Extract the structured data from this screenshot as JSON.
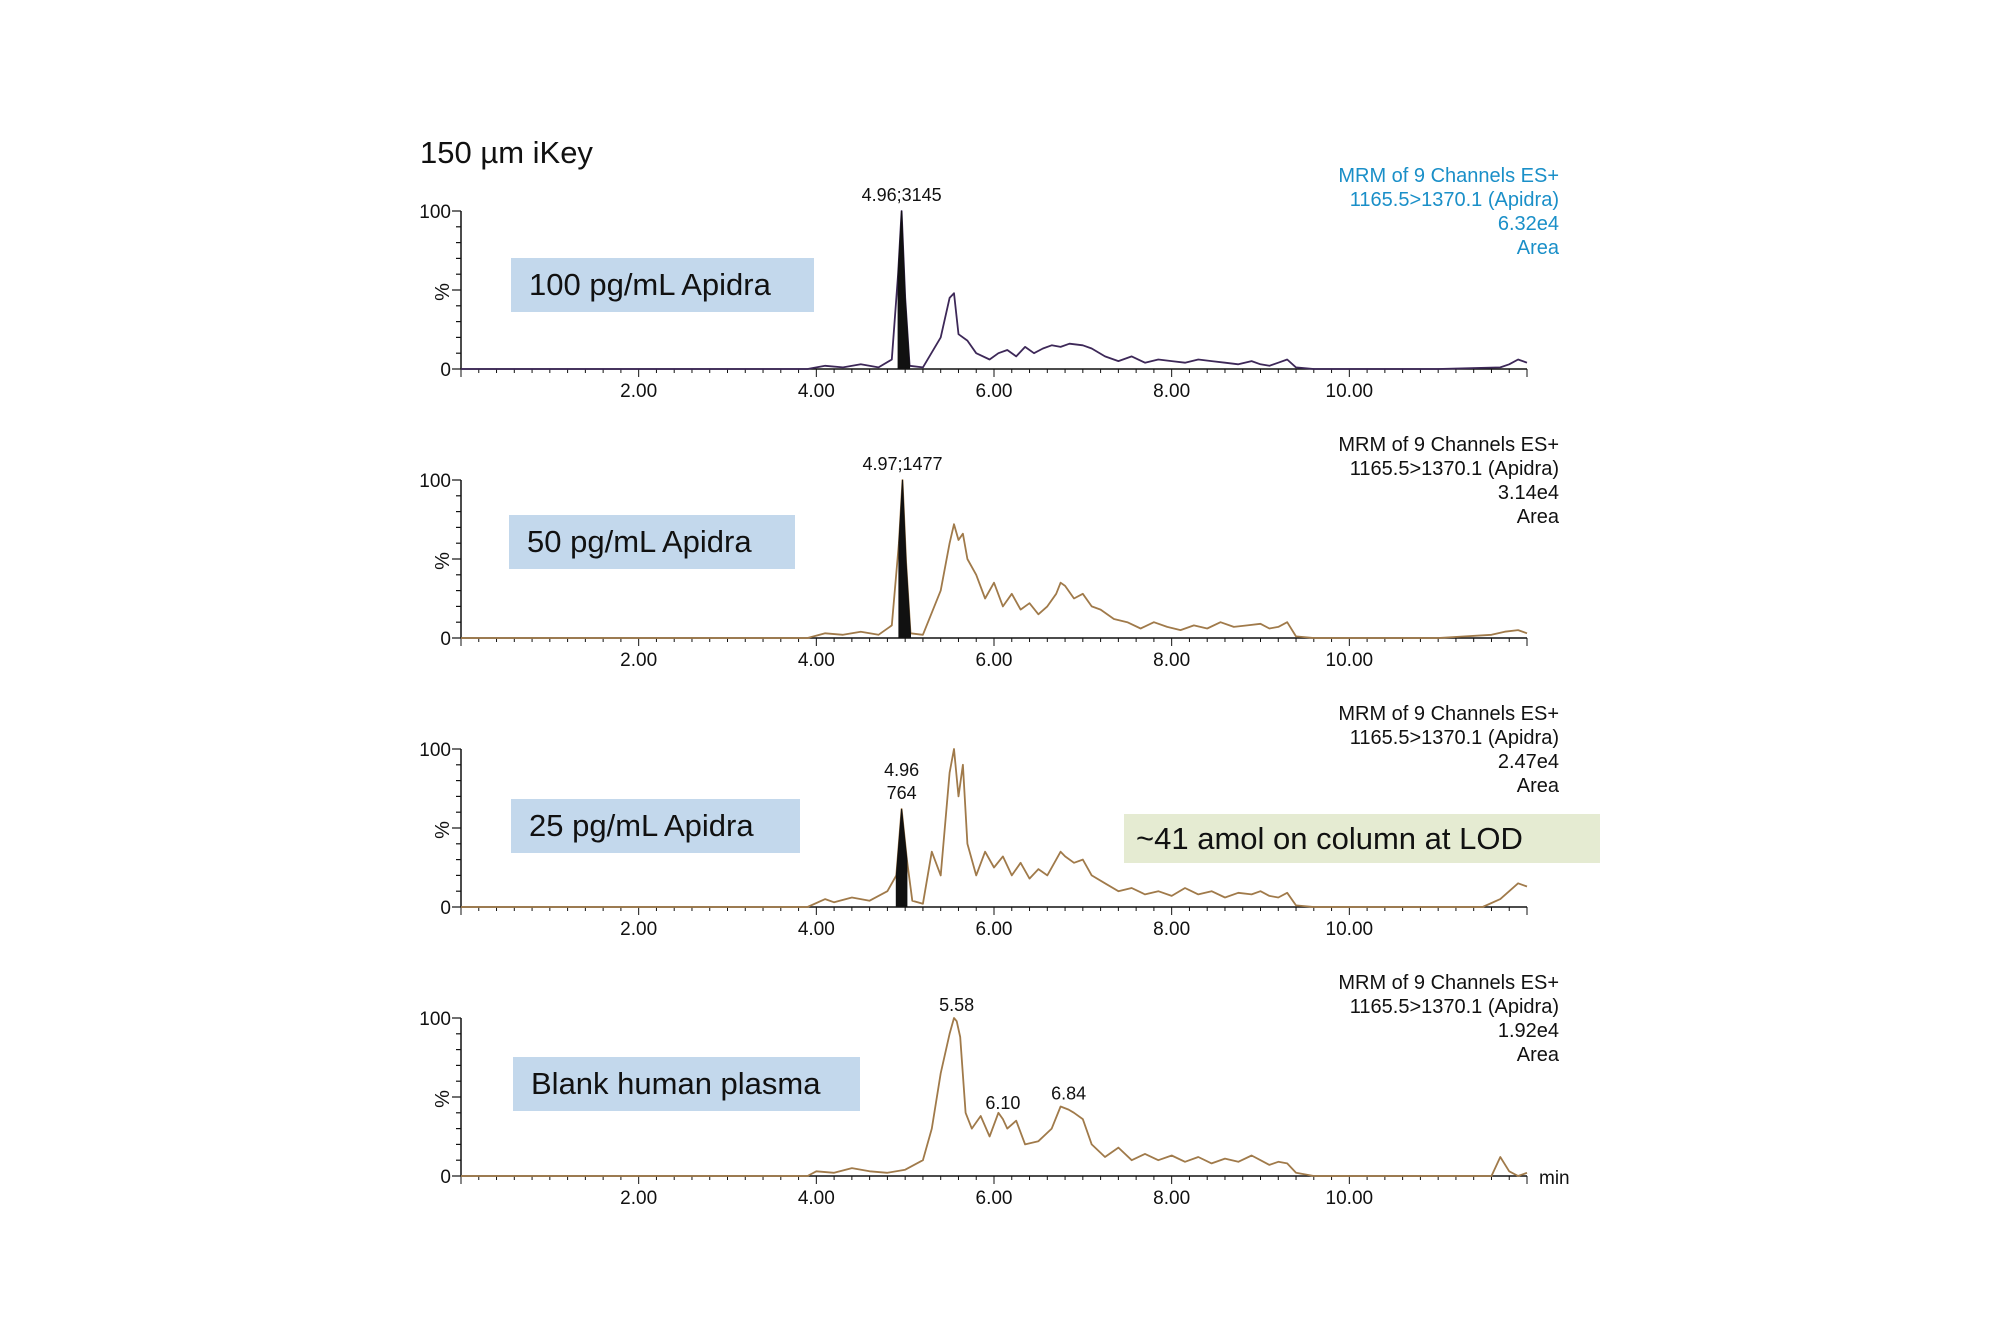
{
  "figure_title": "150 µm iKey",
  "lod_note": "~41 amol on column at LOD",
  "x_unit_label": "min",
  "chart_data": [
    {
      "type": "line",
      "panel_label": "100 pg/mL Apidra",
      "header": [
        "MRM of 9 Channels ES+",
        "1165.5>1370.1 (Apidra)",
        "6.32e4",
        "Area"
      ],
      "header_color": "#1a8fc8",
      "trace_color": "#3d2858",
      "peak_labels": [
        {
          "x": 4.96,
          "text": "4.96;3145"
        }
      ],
      "xlim": [
        0,
        12
      ],
      "ylim": [
        0,
        100
      ],
      "x_ticks": [
        "2.00",
        "4.00",
        "6.00",
        "8.00",
        "10.00"
      ],
      "y_ticks": [
        "0",
        "100"
      ],
      "ylabel": "%",
      "x": [
        0.0,
        3.9,
        4.1,
        4.3,
        4.5,
        4.7,
        4.85,
        4.92,
        4.96,
        5.0,
        5.05,
        5.2,
        5.4,
        5.5,
        5.55,
        5.6,
        5.7,
        5.8,
        5.95,
        6.05,
        6.15,
        6.25,
        6.35,
        6.45,
        6.55,
        6.65,
        6.75,
        6.85,
        7.0,
        7.1,
        7.25,
        7.4,
        7.55,
        7.7,
        7.85,
        8.0,
        8.15,
        8.3,
        8.45,
        8.6,
        8.75,
        8.9,
        9.0,
        9.1,
        9.2,
        9.3,
        9.4,
        9.6,
        10.0,
        11.0,
        11.7,
        11.8,
        11.9,
        12.0
      ],
      "y": [
        0,
        0,
        2,
        1,
        3,
        1,
        6,
        60,
        100,
        45,
        2,
        1,
        20,
        45,
        48,
        22,
        18,
        10,
        6,
        10,
        12,
        8,
        14,
        10,
        13,
        15,
        14,
        16,
        15,
        13,
        8,
        5,
        8,
        4,
        6,
        5,
        4,
        6,
        5,
        4,
        3,
        5,
        3,
        2,
        4,
        6,
        1,
        0,
        0,
        0,
        1,
        3,
        6,
        4
      ]
    },
    {
      "type": "line",
      "panel_label": "50 pg/mL Apidra",
      "header": [
        "MRM of 9 Channels ES+",
        "1165.5>1370.1 (Apidra)",
        "3.14e4",
        "Area"
      ],
      "header_color": "#111111",
      "trace_color": "#a07a4a",
      "peak_labels": [
        {
          "x": 4.97,
          "text": "4.97;1477"
        }
      ],
      "xlim": [
        0,
        12
      ],
      "ylim": [
        0,
        100
      ],
      "x_ticks": [
        "2.00",
        "4.00",
        "6.00",
        "8.00",
        "10.00"
      ],
      "y_ticks": [
        "0",
        "100"
      ],
      "ylabel": "%",
      "x": [
        0.0,
        3.9,
        4.1,
        4.3,
        4.5,
        4.7,
        4.85,
        4.93,
        4.97,
        5.01,
        5.06,
        5.2,
        5.4,
        5.5,
        5.55,
        5.6,
        5.65,
        5.7,
        5.8,
        5.9,
        6.0,
        6.1,
        6.2,
        6.3,
        6.4,
        6.5,
        6.6,
        6.7,
        6.75,
        6.8,
        6.9,
        7.0,
        7.1,
        7.2,
        7.35,
        7.5,
        7.65,
        7.8,
        7.95,
        8.1,
        8.25,
        8.4,
        8.55,
        8.7,
        8.85,
        9.0,
        9.1,
        9.2,
        9.3,
        9.4,
        9.6,
        11.0,
        11.6,
        11.75,
        11.9,
        12.0
      ],
      "y": [
        0,
        0,
        3,
        2,
        4,
        2,
        8,
        60,
        100,
        48,
        3,
        2,
        30,
        60,
        72,
        62,
        66,
        50,
        40,
        25,
        35,
        20,
        28,
        18,
        22,
        15,
        20,
        28,
        35,
        33,
        25,
        28,
        20,
        18,
        12,
        10,
        6,
        10,
        7,
        5,
        8,
        6,
        10,
        7,
        8,
        9,
        6,
        7,
        10,
        1,
        0,
        0,
        2,
        4,
        5,
        3
      ]
    },
    {
      "type": "line",
      "panel_label": "25 pg/mL Apidra",
      "header": [
        "MRM of 9 Channels ES+",
        "1165.5>1370.1 (Apidra)",
        "2.47e4",
        "Area"
      ],
      "header_color": "#111111",
      "trace_color": "#a07a4a",
      "peak_labels": [
        {
          "x": 4.96,
          "text": [
            "4.96",
            "764"
          ]
        }
      ],
      "xlim": [
        0,
        12
      ],
      "ylim": [
        0,
        100
      ],
      "x_ticks": [
        "2.00",
        "4.00",
        "6.00",
        "8.00",
        "10.00"
      ],
      "y_ticks": [
        "0",
        "100"
      ],
      "ylabel": "%",
      "x": [
        0.0,
        3.9,
        4.1,
        4.2,
        4.4,
        4.6,
        4.8,
        4.9,
        4.96,
        5.02,
        5.08,
        5.2,
        5.3,
        5.4,
        5.5,
        5.55,
        5.6,
        5.65,
        5.7,
        5.8,
        5.9,
        6.0,
        6.1,
        6.2,
        6.3,
        6.4,
        6.5,
        6.6,
        6.7,
        6.75,
        6.8,
        6.9,
        7.0,
        7.1,
        7.25,
        7.4,
        7.55,
        7.7,
        7.85,
        8.0,
        8.15,
        8.3,
        8.45,
        8.6,
        8.75,
        8.9,
        9.0,
        9.1,
        9.2,
        9.3,
        9.4,
        9.6,
        11.0,
        11.5,
        11.7,
        11.8,
        11.9,
        12.0
      ],
      "y": [
        0,
        0,
        5,
        3,
        6,
        4,
        10,
        20,
        62,
        30,
        4,
        2,
        35,
        20,
        85,
        100,
        70,
        90,
        40,
        20,
        35,
        25,
        32,
        20,
        28,
        18,
        24,
        20,
        30,
        35,
        32,
        28,
        30,
        20,
        15,
        10,
        12,
        8,
        10,
        7,
        12,
        8,
        10,
        6,
        9,
        8,
        10,
        7,
        6,
        9,
        1,
        0,
        0,
        0,
        5,
        10,
        15,
        13
      ]
    },
    {
      "type": "line",
      "panel_label": "Blank human plasma",
      "header": [
        "MRM of 9 Channels ES+",
        "1165.5>1370.1 (Apidra)",
        "1.92e4",
        "Area"
      ],
      "header_color": "#111111",
      "trace_color": "#a07a4a",
      "peak_labels": [
        {
          "x": 5.58,
          "text": "5.58"
        },
        {
          "x": 6.1,
          "text": "6.10"
        },
        {
          "x": 6.84,
          "text": "6.84"
        }
      ],
      "xlim": [
        0,
        12
      ],
      "ylim": [
        0,
        100
      ],
      "x_ticks": [
        "2.00",
        "4.00",
        "6.00",
        "8.00",
        "10.00"
      ],
      "y_ticks": [
        "0",
        "100"
      ],
      "ylabel": "%",
      "x": [
        0.0,
        3.9,
        4.0,
        4.2,
        4.4,
        4.6,
        4.8,
        5.0,
        5.2,
        5.3,
        5.4,
        5.5,
        5.55,
        5.58,
        5.62,
        5.68,
        5.75,
        5.85,
        5.95,
        6.05,
        6.1,
        6.15,
        6.25,
        6.35,
        6.5,
        6.65,
        6.75,
        6.84,
        6.9,
        7.0,
        7.1,
        7.25,
        7.4,
        7.55,
        7.7,
        7.85,
        8.0,
        8.15,
        8.3,
        8.45,
        8.6,
        8.75,
        8.9,
        9.0,
        9.1,
        9.2,
        9.3,
        9.4,
        9.6,
        11.0,
        11.6,
        11.7,
        11.8,
        11.9,
        12.0
      ],
      "y": [
        0,
        0,
        3,
        2,
        5,
        3,
        2,
        4,
        10,
        30,
        65,
        90,
        100,
        98,
        88,
        40,
        30,
        38,
        25,
        40,
        36,
        30,
        35,
        20,
        22,
        30,
        44,
        42,
        40,
        36,
        20,
        12,
        18,
        10,
        14,
        10,
        13,
        9,
        12,
        8,
        11,
        9,
        13,
        10,
        7,
        9,
        8,
        2,
        0,
        0,
        0,
        12,
        3,
        0,
        2
      ]
    }
  ]
}
